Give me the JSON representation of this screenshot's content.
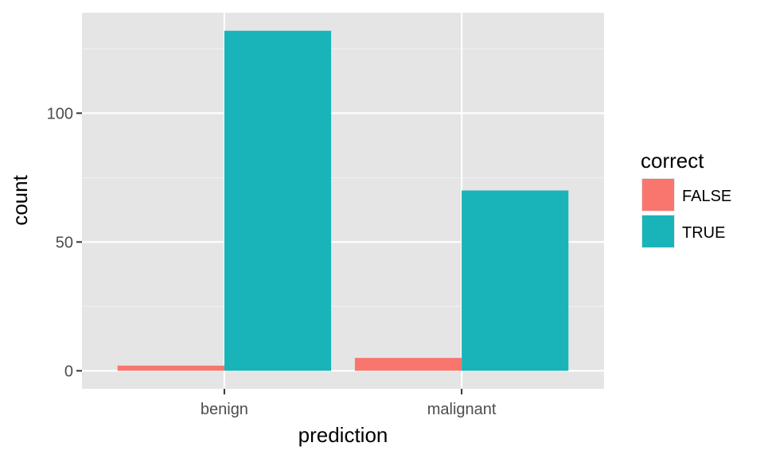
{
  "chart_data": {
    "type": "bar",
    "xlabel": "prediction",
    "ylabel": "count",
    "categories": [
      "benign",
      "malignant"
    ],
    "series": [
      {
        "name": "FALSE",
        "color": "#f8766d",
        "values": [
          2,
          5
        ]
      },
      {
        "name": "TRUE",
        "color": "#19b4b9",
        "values": [
          132,
          70
        ]
      }
    ],
    "ylim": [
      -7,
      139
    ],
    "yticks": [
      0,
      50,
      100
    ],
    "grid": true,
    "panel_background": "#e5e5e5",
    "legend": {
      "title": "correct",
      "position": "right"
    }
  }
}
